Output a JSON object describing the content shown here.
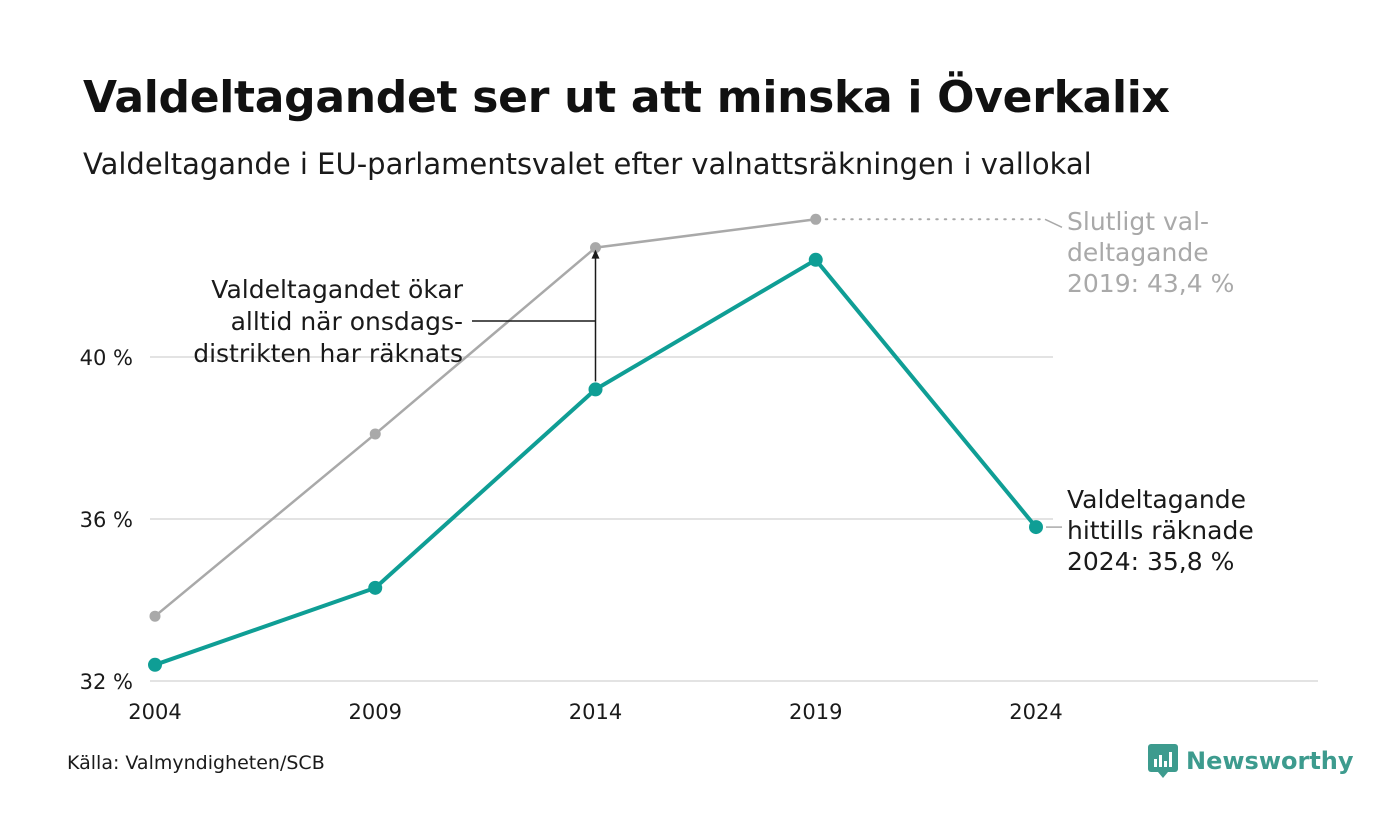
{
  "title": "Valdeltagandet ser ut att minska i Överkalix",
  "subtitle": "Valdeltagande i EU-parlamentsvalet efter valnattsräkningen i vallokal",
  "source": "Källa: Valmyndigheten/SCB",
  "brand": {
    "name": "Newsworthy",
    "icon": "newsworthy-logo-icon",
    "color": "#3d9b8e"
  },
  "colors": {
    "counted": "#0f9e95",
    "final": "#a9a9a9",
    "grid": "#e3e3e3"
  },
  "chart_data": {
    "type": "line",
    "x": [
      2004,
      2009,
      2014,
      2019,
      2024
    ],
    "xlabels": [
      "2004",
      "2009",
      "2014",
      "2019",
      "2024"
    ],
    "ylim": [
      32,
      45
    ],
    "yticks": [
      32,
      36,
      40
    ],
    "ytick_labels": [
      "32 %",
      "36 %",
      "40 %"
    ],
    "grid": true,
    "series": [
      {
        "key": "final",
        "x": [
          2004,
          2009,
          2014,
          2019
        ],
        "values": [
          33.6,
          38.1,
          42.7,
          43.4
        ]
      },
      {
        "key": "counted",
        "x": [
          2004,
          2009,
          2014,
          2019,
          2024
        ],
        "values": [
          32.4,
          34.3,
          39.2,
          42.4,
          35.8
        ]
      }
    ],
    "annotations": {
      "final_label": [
        "Slutligt val-",
        "deltagande",
        "2019: 43,4 %"
      ],
      "counted_label": [
        "Valdeltagande",
        "hittills räknade",
        "2024: 35,8 %"
      ],
      "increase_label": [
        "Valdeltagandet ökar",
        "alltid när onsdags-",
        "distrikten har räknats"
      ]
    }
  }
}
